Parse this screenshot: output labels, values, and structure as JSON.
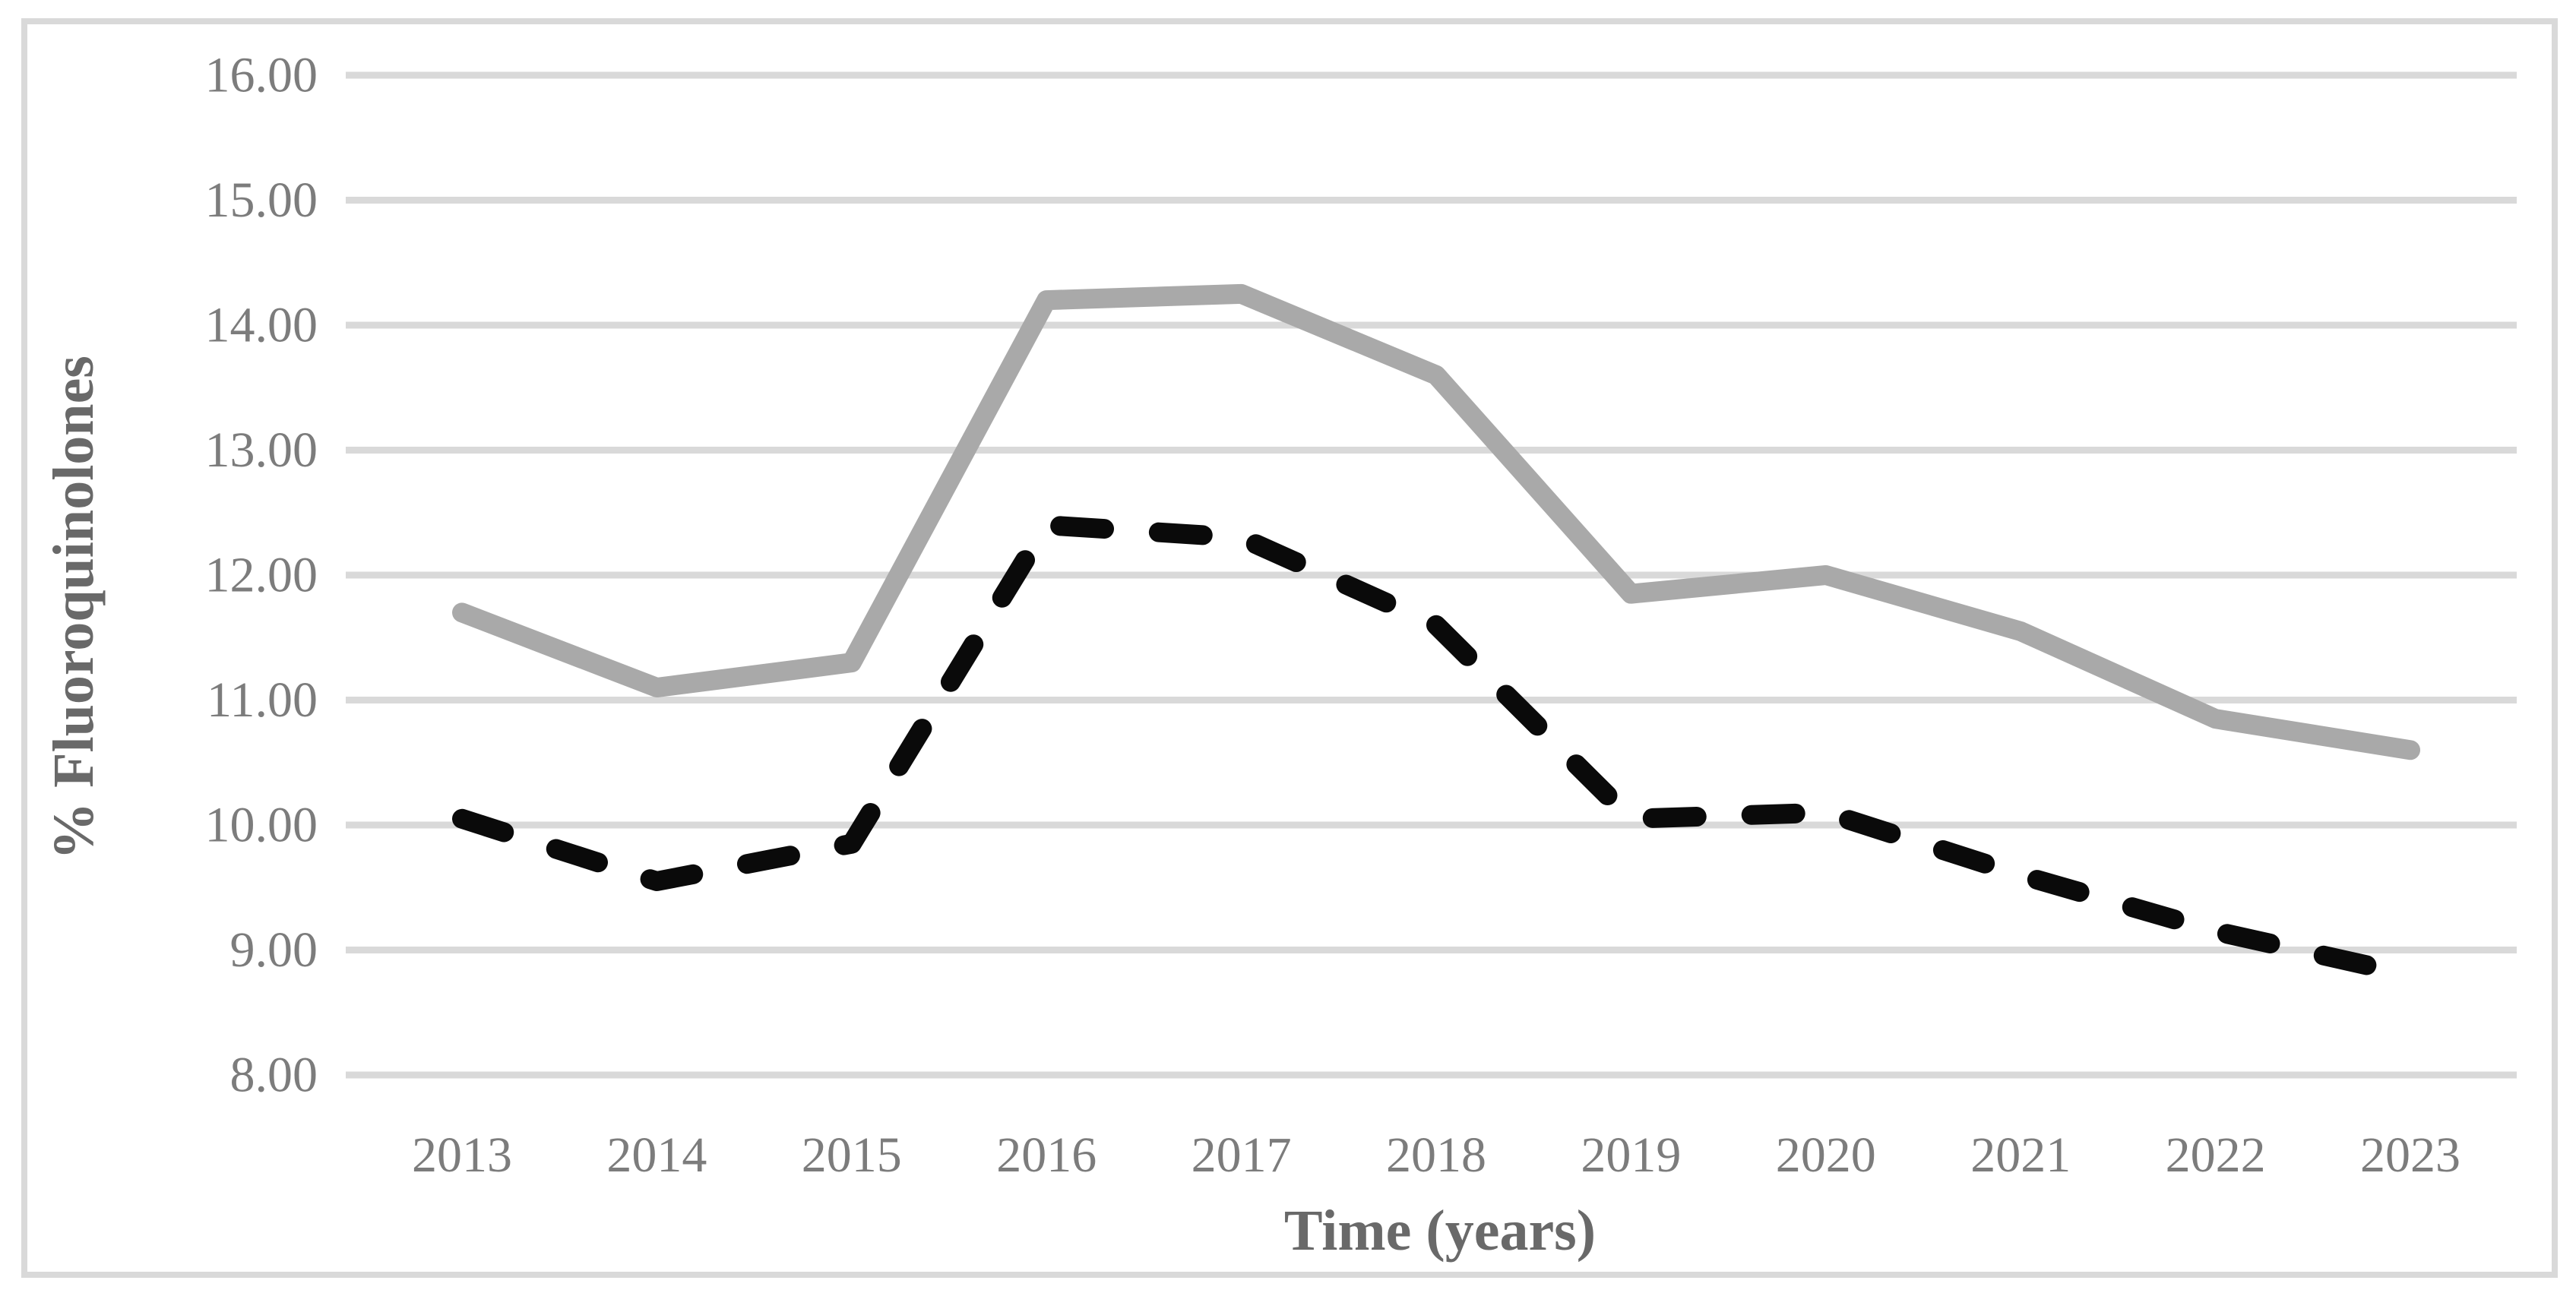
{
  "chart_data": {
    "type": "line",
    "title": "",
    "categories": [
      "2013",
      "2014",
      "2015",
      "2016",
      "2017",
      "2018",
      "2019",
      "2020",
      "2021",
      "2022",
      "2023"
    ],
    "series": [
      {
        "name": "series-solid-gray",
        "line_style": "solid",
        "color": "#a9a9a9",
        "values": [
          11.7,
          11.1,
          11.3,
          14.2,
          14.25,
          13.6,
          11.85,
          12.0,
          11.55,
          10.85,
          10.6
        ]
      },
      {
        "name": "series-dashed-black",
        "line_style": "dashed",
        "color": "#0a0a0a",
        "values": [
          10.05,
          9.55,
          9.85,
          12.4,
          12.3,
          11.6,
          10.05,
          10.1,
          9.6,
          9.15,
          8.8
        ]
      }
    ],
    "xlabel": "Time (years)",
    "ylabel": "% Fluoroquinolones",
    "ylim": [
      8,
      16
    ],
    "y_tick_step": 1,
    "y_tick_labels": [
      "16.00",
      "15.00",
      "14.00",
      "13.00",
      "12.00",
      "11.00",
      "10.00",
      "9.00",
      "8.00"
    ],
    "grid": true,
    "legend": "none"
  },
  "style": {
    "background": "#ffffff",
    "gridline_color": "#d9d9d9",
    "border_color": "#d9d9d9",
    "tick_label_color": "#7c7c7c",
    "axis_title_color": "#696969"
  }
}
